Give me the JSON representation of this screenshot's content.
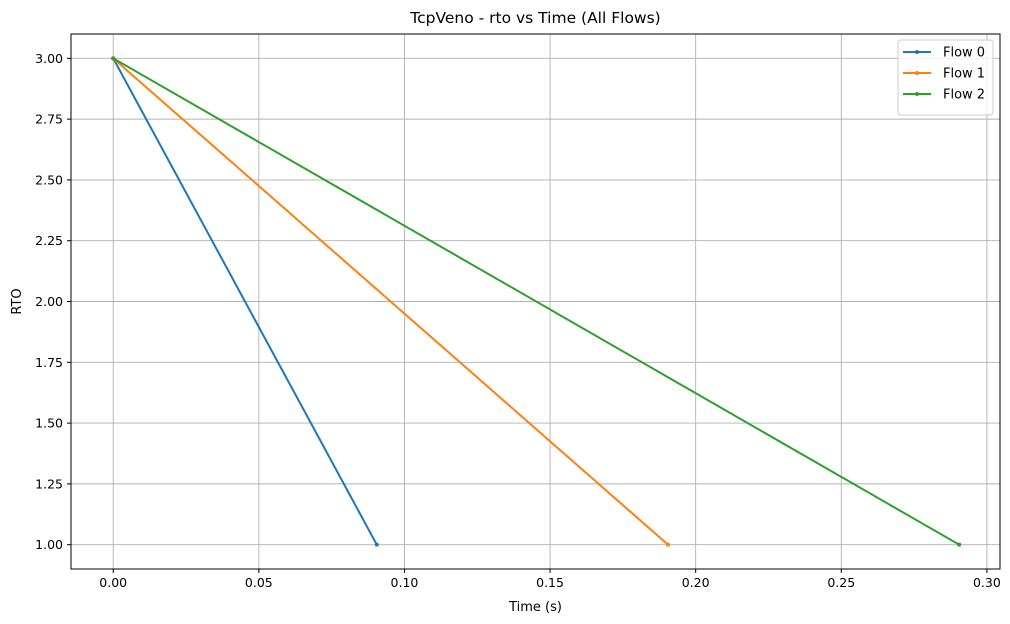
{
  "chart_data": {
    "type": "line",
    "title": "TcpVeno - rto vs Time (All Flows)",
    "xlabel": "Time (s)",
    "ylabel": "RTO",
    "xlim": [
      -0.0145,
      0.3045
    ],
    "ylim": [
      0.9,
      3.1
    ],
    "xticks": [
      0.0,
      0.05,
      0.1,
      0.15,
      0.2,
      0.25,
      0.3
    ],
    "xtick_labels": [
      "0.00",
      "0.05",
      "0.10",
      "0.15",
      "0.20",
      "0.25",
      "0.30"
    ],
    "yticks": [
      1.0,
      1.25,
      1.5,
      1.75,
      2.0,
      2.25,
      2.5,
      2.75,
      3.0
    ],
    "ytick_labels": [
      "1.00",
      "1.25",
      "1.50",
      "1.75",
      "2.00",
      "2.25",
      "2.50",
      "2.75",
      "3.00"
    ],
    "grid": true,
    "legend_position": "top-right",
    "series": [
      {
        "name": "Flow 0",
        "color": "#1f77b4",
        "x": [
          0.0,
          0.0905
        ],
        "y": [
          3.0,
          1.0
        ]
      },
      {
        "name": "Flow 1",
        "color": "#ff7f0e",
        "x": [
          0.0,
          0.1905
        ],
        "y": [
          3.0,
          1.0
        ]
      },
      {
        "name": "Flow 2",
        "color": "#2ca02c",
        "x": [
          0.0,
          0.2905
        ],
        "y": [
          3.0,
          1.0
        ]
      }
    ]
  }
}
